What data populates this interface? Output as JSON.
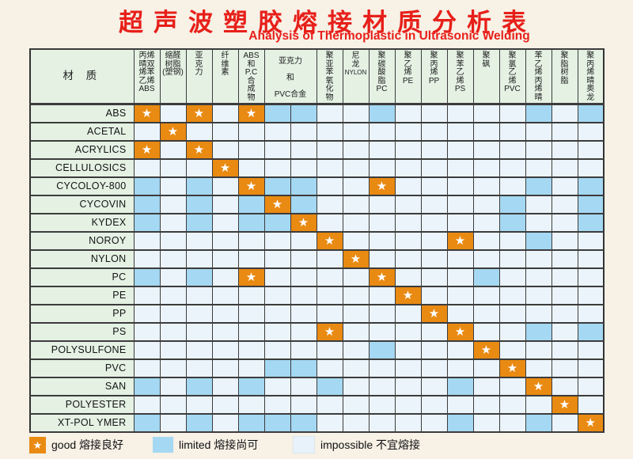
{
  "title": {
    "zh": "超声波塑胶熔接材质分析表",
    "en": "Analysis of Thermoplastic in Ultrasonic Welding"
  },
  "table": {
    "corner_label": "材 质",
    "columns": [
      {
        "lines": [
          "丙烯",
          "晴双",
          "烯苯",
          "乙烯",
          "ABS"
        ],
        "span": 1
      },
      {
        "lines": [
          "缩醛",
          "树脂",
          "(塑钢)"
        ],
        "span": 1
      },
      {
        "lines": [
          "亚",
          "克",
          "力"
        ],
        "span": 1
      },
      {
        "lines": [
          "纤",
          "维",
          "素"
        ],
        "span": 1
      },
      {
        "lines": [
          "ABS",
          "和",
          "P.C",
          "合",
          "成",
          "物"
        ],
        "span": 1
      },
      {
        "lines": [
          "亚克力",
          "和",
          "PVC合金"
        ],
        "span": 2
      },
      {
        "lines": [
          "聚",
          "亚",
          "苯",
          "氧",
          "化",
          "物"
        ],
        "span": 1
      },
      {
        "lines": [
          "尼",
          "龙",
          "NYLON"
        ],
        "span": 1
      },
      {
        "lines": [
          "聚",
          "碳",
          "酸",
          "脂",
          "PC"
        ],
        "span": 1
      },
      {
        "lines": [
          "聚",
          "乙",
          "烯",
          "PE"
        ],
        "span": 1
      },
      {
        "lines": [
          "聚",
          "丙",
          "烯",
          "PP"
        ],
        "span": 1
      },
      {
        "lines": [
          "聚",
          "苯",
          "乙",
          "烯",
          "PS"
        ],
        "span": 1
      },
      {
        "lines": [
          "聚",
          "砜"
        ],
        "span": 1
      },
      {
        "lines": [
          "聚",
          "氯",
          "乙",
          "烯",
          "PVC"
        ],
        "span": 1
      },
      {
        "lines": [
          "苯",
          "乙",
          "烯",
          "丙",
          "烯",
          "晴"
        ],
        "span": 1
      },
      {
        "lines": [
          "聚",
          "脂",
          "树",
          "脂"
        ],
        "span": 1
      },
      {
        "lines": [
          "聚",
          "丙",
          "烯",
          "晴",
          "奥",
          "龙"
        ],
        "span": 1
      }
    ],
    "cell_codes": {
      "G": "good 熔接良好",
      "L": "limited 熔接尚可",
      "I": "impossible 不宜熔接"
    },
    "rows": [
      {
        "label": "ABS",
        "cells": [
          "G",
          "I",
          "G",
          "I",
          "G",
          "L",
          "L",
          "I",
          "I",
          "L",
          "I",
          "I",
          "I",
          "I",
          "I",
          "L",
          "I",
          "L"
        ]
      },
      {
        "label": "ACETAL",
        "cells": [
          "I",
          "G",
          "I",
          "I",
          "I",
          "I",
          "I",
          "I",
          "I",
          "I",
          "I",
          "I",
          "I",
          "I",
          "I",
          "I",
          "I",
          "I"
        ]
      },
      {
        "label": "ACRYLICS",
        "cells": [
          "G",
          "I",
          "G",
          "I",
          "I",
          "I",
          "I",
          "I",
          "I",
          "I",
          "I",
          "I",
          "I",
          "I",
          "I",
          "I",
          "I",
          "I"
        ]
      },
      {
        "label": "CELLULOSICS",
        "cells": [
          "I",
          "I",
          "I",
          "G",
          "I",
          "I",
          "I",
          "I",
          "I",
          "I",
          "I",
          "I",
          "I",
          "I",
          "I",
          "I",
          "I",
          "I"
        ]
      },
      {
        "label": "CYCOLOY-800",
        "cells": [
          "L",
          "I",
          "L",
          "I",
          "G",
          "L",
          "L",
          "I",
          "I",
          "G",
          "I",
          "I",
          "I",
          "I",
          "I",
          "L",
          "I",
          "L"
        ]
      },
      {
        "label": "CYCOVIN",
        "cells": [
          "L",
          "I",
          "L",
          "I",
          "L",
          "G",
          "L",
          "I",
          "I",
          "I",
          "I",
          "I",
          "I",
          "I",
          "L",
          "I",
          "I",
          "L"
        ]
      },
      {
        "label": "KYDEX",
        "cells": [
          "L",
          "I",
          "L",
          "I",
          "L",
          "L",
          "G",
          "I",
          "I",
          "I",
          "I",
          "I",
          "I",
          "I",
          "L",
          "I",
          "I",
          "L"
        ]
      },
      {
        "label": "NOROY",
        "cells": [
          "I",
          "I",
          "I",
          "I",
          "I",
          "I",
          "I",
          "G",
          "I",
          "I",
          "I",
          "I",
          "G",
          "I",
          "I",
          "L",
          "I",
          "I"
        ]
      },
      {
        "label": "NYLON",
        "cells": [
          "I",
          "I",
          "I",
          "I",
          "I",
          "I",
          "I",
          "I",
          "G",
          "I",
          "I",
          "I",
          "I",
          "I",
          "I",
          "I",
          "I",
          "I"
        ]
      },
      {
        "label": "PC",
        "cells": [
          "L",
          "I",
          "L",
          "I",
          "G",
          "I",
          "I",
          "I",
          "I",
          "G",
          "I",
          "I",
          "I",
          "L",
          "I",
          "I",
          "I",
          "I"
        ]
      },
      {
        "label": "PE",
        "cells": [
          "I",
          "I",
          "I",
          "I",
          "I",
          "I",
          "I",
          "I",
          "I",
          "I",
          "G",
          "I",
          "I",
          "I",
          "I",
          "I",
          "I",
          "I"
        ]
      },
      {
        "label": "PP",
        "cells": [
          "I",
          "I",
          "I",
          "I",
          "I",
          "I",
          "I",
          "I",
          "I",
          "I",
          "I",
          "G",
          "I",
          "I",
          "I",
          "I",
          "I",
          "I"
        ]
      },
      {
        "label": "PS",
        "cells": [
          "I",
          "I",
          "I",
          "I",
          "I",
          "I",
          "I",
          "G",
          "I",
          "I",
          "I",
          "I",
          "G",
          "I",
          "I",
          "L",
          "I",
          "L"
        ]
      },
      {
        "label": "POLYSULFONE",
        "cells": [
          "I",
          "I",
          "I",
          "I",
          "I",
          "I",
          "I",
          "I",
          "I",
          "L",
          "I",
          "I",
          "I",
          "G",
          "I",
          "I",
          "I",
          "I"
        ]
      },
      {
        "label": "PVC",
        "cells": [
          "I",
          "I",
          "I",
          "I",
          "I",
          "L",
          "L",
          "I",
          "I",
          "I",
          "I",
          "I",
          "I",
          "I",
          "G",
          "I",
          "I",
          "I"
        ]
      },
      {
        "label": "SAN",
        "cells": [
          "L",
          "I",
          "L",
          "I",
          "L",
          "I",
          "I",
          "L",
          "I",
          "I",
          "I",
          "I",
          "L",
          "I",
          "I",
          "G",
          "I",
          "I"
        ]
      },
      {
        "label": "POLYESTER",
        "cells": [
          "I",
          "I",
          "I",
          "I",
          "I",
          "I",
          "I",
          "I",
          "I",
          "I",
          "I",
          "I",
          "I",
          "I",
          "I",
          "I",
          "G",
          "I"
        ]
      },
      {
        "label": "XT-POL YMER",
        "cells": [
          "L",
          "I",
          "L",
          "I",
          "L",
          "L",
          "L",
          "I",
          "I",
          "I",
          "I",
          "I",
          "L",
          "I",
          "I",
          "L",
          "I",
          "G"
        ]
      }
    ]
  },
  "legend": {
    "star_glyph": "★",
    "items": [
      {
        "key": "good",
        "label": "good 熔接良好"
      },
      {
        "key": "limited",
        "label": "limited 熔接尚可"
      },
      {
        "key": "impossible",
        "label": "impossible 不宜熔接"
      }
    ]
  },
  "colors": {
    "page_bg": "#f7f1e6",
    "title_red": "#e71f1a",
    "header_green": "#e4f1e3",
    "cell_good": "#e98a12",
    "cell_limited": "#a5d8f2",
    "cell_impossible": "#ebf4fb",
    "grid": "#3c3c3c",
    "star": "#ffffff"
  }
}
